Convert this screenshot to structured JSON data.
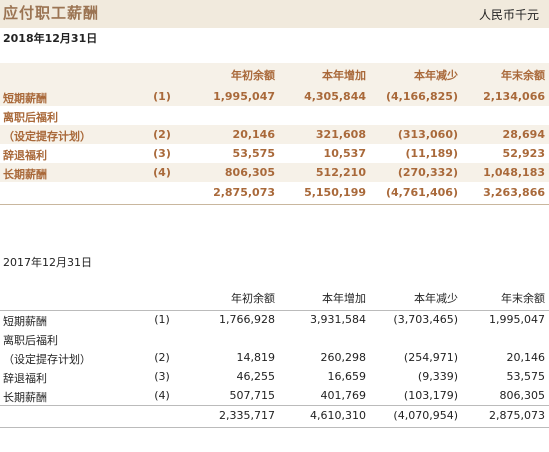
{
  "title": "应付职工薪酬",
  "unit": "人民币千元",
  "headers": [
    "年初余额",
    "本年增加",
    "本年减少",
    "年末余额"
  ],
  "sections": [
    {
      "period": "2018年12月31日",
      "rows": [
        {
          "label": "短期薪酬",
          "note": "(1)",
          "v1": "1,995,047",
          "v2": "4,305,844",
          "v3": "(4,166,825)",
          "v4": "2,134,066"
        },
        {
          "label": "离职后福利",
          "note": "",
          "v1": "",
          "v2": "",
          "v3": "",
          "v4": ""
        },
        {
          "label": "（设定提存计划）",
          "note": "(2)",
          "v1": "20,146",
          "v2": "321,608",
          "v3": "(313,060)",
          "v4": "28,694"
        },
        {
          "label": "辞退福利",
          "note": "(3)",
          "v1": "53,575",
          "v2": "10,537",
          "v3": "(11,189)",
          "v4": "52,923"
        },
        {
          "label": "长期薪酬",
          "note": "(4)",
          "v1": "806,305",
          "v2": "512,210",
          "v3": "(270,332)",
          "v4": "1,048,183"
        }
      ],
      "total": {
        "v1": "2,875,073",
        "v2": "5,150,199",
        "v3": "(4,761,406)",
        "v4": "3,263,866"
      }
    },
    {
      "period": "2017年12月31日",
      "rows": [
        {
          "label": "短期薪酬",
          "note": "(1)",
          "v1": "1,766,928",
          "v2": "3,931,584",
          "v3": "(3,703,465)",
          "v4": "1,995,047"
        },
        {
          "label": "离职后福利",
          "note": "",
          "v1": "",
          "v2": "",
          "v3": "",
          "v4": ""
        },
        {
          "label": "（设定提存计划）",
          "note": "(2)",
          "v1": "14,819",
          "v2": "260,298",
          "v3": "(254,971)",
          "v4": "20,146"
        },
        {
          "label": "辞退福利",
          "note": "(3)",
          "v1": "46,255",
          "v2": "16,659",
          "v3": "(9,339)",
          "v4": "53,575"
        },
        {
          "label": "长期薪酬",
          "note": "(4)",
          "v1": "507,715",
          "v2": "401,769",
          "v3": "(103,179)",
          "v4": "806,305"
        }
      ],
      "total": {
        "v1": "2,335,717",
        "v2": "4,610,310",
        "v3": "(4,070,954)",
        "v4": "2,875,073"
      }
    }
  ]
}
